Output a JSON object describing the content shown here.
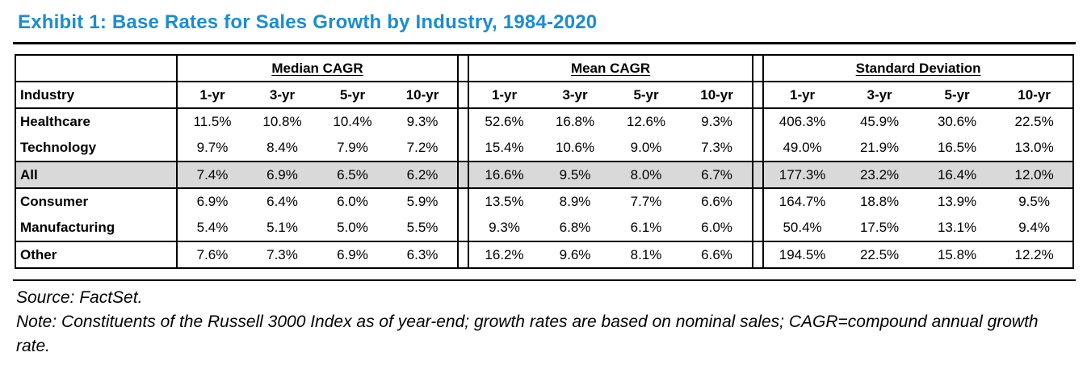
{
  "title": "Exhibit 1: Base Rates for Sales Growth by Industry, 1984-2020",
  "colors": {
    "title_blue": "#1b8dd1",
    "highlight_gray": "#d9d9d9"
  },
  "table": {
    "industry_header": "Industry",
    "groups": [
      {
        "key": "median",
        "label": "Median CAGR"
      },
      {
        "key": "mean",
        "label": "Mean CAGR"
      },
      {
        "key": "stdev",
        "label": "Standard Deviation"
      }
    ],
    "period_headers": [
      "1-yr",
      "3-yr",
      "5-yr",
      "10-yr"
    ],
    "rows": [
      {
        "industry": "Healthcare",
        "highlight": false,
        "median": [
          "11.5%",
          "10.8%",
          "10.4%",
          "9.3%"
        ],
        "mean": [
          "52.6%",
          "16.8%",
          "12.6%",
          "9.3%"
        ],
        "stdev": [
          "406.3%",
          "45.9%",
          "30.6%",
          "22.5%"
        ]
      },
      {
        "industry": "Technology",
        "highlight": false,
        "median": [
          "9.7%",
          "8.4%",
          "7.9%",
          "7.2%"
        ],
        "mean": [
          "15.4%",
          "10.6%",
          "9.0%",
          "7.3%"
        ],
        "stdev": [
          "49.0%",
          "21.9%",
          "16.5%",
          "13.0%"
        ]
      },
      {
        "industry": "All",
        "highlight": true,
        "median": [
          "7.4%",
          "6.9%",
          "6.5%",
          "6.2%"
        ],
        "mean": [
          "16.6%",
          "9.5%",
          "8.0%",
          "6.7%"
        ],
        "stdev": [
          "177.3%",
          "23.2%",
          "16.4%",
          "12.0%"
        ]
      },
      {
        "industry": "Consumer",
        "highlight": false,
        "median": [
          "6.9%",
          "6.4%",
          "6.0%",
          "5.9%"
        ],
        "mean": [
          "13.5%",
          "8.9%",
          "7.7%",
          "6.6%"
        ],
        "stdev": [
          "164.7%",
          "18.8%",
          "13.9%",
          "9.5%"
        ]
      },
      {
        "industry": "Manufacturing",
        "highlight": false,
        "median": [
          "5.4%",
          "5.1%",
          "5.0%",
          "5.5%"
        ],
        "mean": [
          "9.3%",
          "6.8%",
          "6.1%",
          "6.0%"
        ],
        "stdev": [
          "50.4%",
          "17.5%",
          "13.1%",
          "9.4%"
        ]
      },
      {
        "industry": "Other",
        "highlight": false,
        "median": [
          "7.6%",
          "7.3%",
          "6.9%",
          "6.3%"
        ],
        "mean": [
          "16.2%",
          "9.6%",
          "8.1%",
          "6.6%"
        ],
        "stdev": [
          "194.5%",
          "22.5%",
          "15.8%",
          "12.2%"
        ]
      }
    ]
  },
  "footer": {
    "source": "Source: FactSet.",
    "note": "Note: Constituents of the Russell 3000 Index as of year-end; growth rates are based on nominal sales; CAGR=compound annual growth rate."
  }
}
